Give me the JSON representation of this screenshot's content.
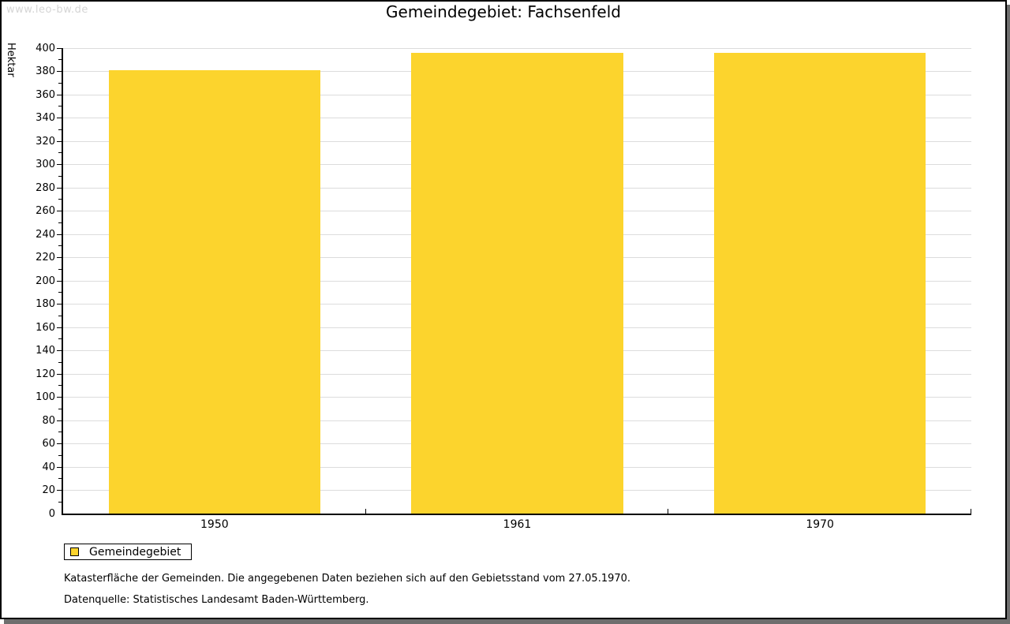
{
  "watermark": "www.leo-bw.de",
  "chart_data": {
    "type": "bar",
    "title": "Gemeindegebiet: Fachsenfeld",
    "xlabel": "",
    "ylabel": "Hektar",
    "categories": [
      "1950",
      "1961",
      "1970"
    ],
    "series": [
      {
        "name": "Gemeindegebiet",
        "values": [
          381,
          396,
          396
        ]
      }
    ],
    "ylim": [
      0,
      400
    ],
    "ytick_step": 20,
    "yminor_step": 10,
    "grid": true,
    "legend_position": "bottom-left",
    "bar_color": "#FCD42D"
  },
  "legend": {
    "label": "Gemeindegebiet"
  },
  "footnotes": {
    "line1": "Katasterfläche der Gemeinden. Die angegebenen Daten beziehen sich auf den Gebietsstand vom 27.05.1970.",
    "line2": "Datenquelle: Statistisches Landesamt Baden-Württemberg."
  },
  "colors": {
    "bar": "#FCD42D",
    "gridline": "#dcdcdc",
    "axis": "#000000",
    "watermark": "#d5d5d5",
    "page_shadow": "#6e6e6e"
  }
}
